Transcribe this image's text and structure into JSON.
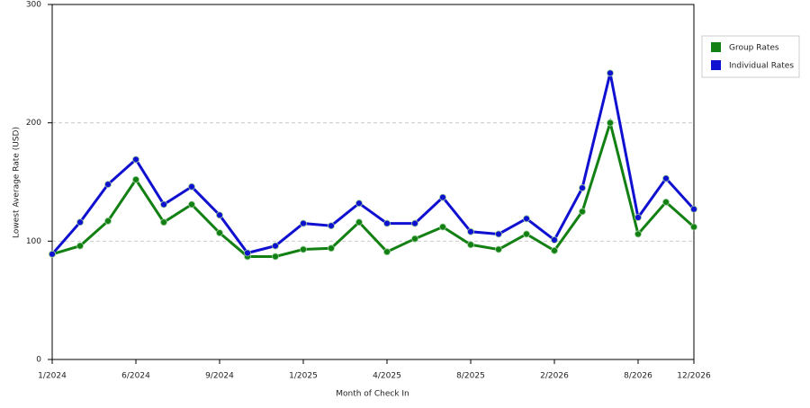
{
  "chart_data": {
    "type": "line",
    "x_label": "Month of Check In",
    "y_label": "Lowest Average Rate (USD)",
    "categories": [
      "1/2024",
      null,
      null,
      "6/2024",
      null,
      null,
      "9/2024",
      null,
      null,
      "1/2025",
      null,
      null,
      "4/2025",
      null,
      null,
      "8/2025",
      null,
      null,
      "2/2026",
      null,
      null,
      "8/2026",
      null,
      "12/2026"
    ],
    "series": [
      {
        "name": "Group Rates",
        "color": "#138013",
        "values": [
          89,
          96,
          117,
          152,
          116,
          131,
          107,
          87,
          87,
          93,
          94,
          116,
          91,
          102,
          112,
          97,
          93,
          106,
          92,
          125,
          200,
          106,
          133,
          112
        ]
      },
      {
        "name": "Individual Rates",
        "color": "#1010d0",
        "values": [
          89,
          116,
          148,
          169,
          131,
          146,
          122,
          90,
          96,
          115,
          113,
          132,
          115,
          115,
          137,
          108,
          106,
          119,
          101,
          145,
          242,
          120,
          153,
          127
        ]
      }
    ],
    "ylim": [
      0,
      300
    ],
    "yticks": [
      0,
      100,
      200,
      300
    ],
    "grid": true,
    "legend": "right"
  }
}
